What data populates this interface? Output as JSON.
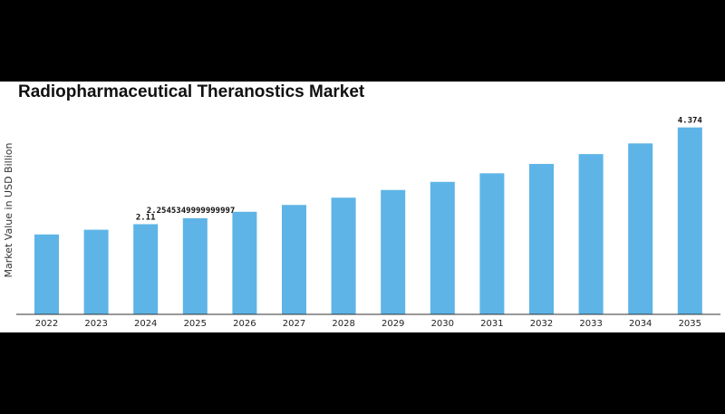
{
  "chart_data": {
    "type": "bar",
    "title": "Radiopharmaceutical Theranostics Market",
    "xlabel": "",
    "ylabel": "Market Value in USD Billion",
    "categories": [
      "2022",
      "2023",
      "2024",
      "2025",
      "2026",
      "2027",
      "2028",
      "2029",
      "2030",
      "2031",
      "2032",
      "2033",
      "2034",
      "2035"
    ],
    "values": [
      1.87,
      1.98,
      2.11,
      2.25,
      2.4,
      2.56,
      2.73,
      2.91,
      3.1,
      3.3,
      3.52,
      3.75,
      4.0,
      4.374
    ],
    "data_labels": [
      {
        "index": 2,
        "text": "2.11"
      },
      {
        "index": 3,
        "text": "2.2545349999999997"
      },
      {
        "index": 13,
        "text": "4.374"
      }
    ],
    "ylim": [
      0,
      4.6
    ],
    "grid": false,
    "bar_color": "#5eb4e6"
  }
}
